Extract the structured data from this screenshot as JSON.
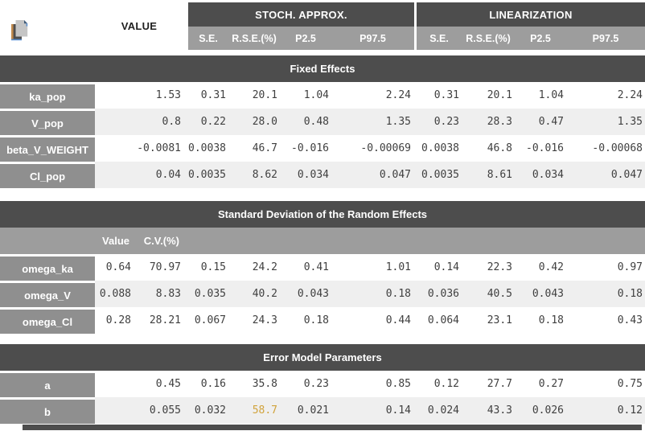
{
  "header": {
    "value_label": "VALUE",
    "groups": [
      {
        "label": "STOCH. APPROX.",
        "columns": [
          "S.E.",
          "R.S.E.(%)",
          "P2.5",
          "P97.5"
        ]
      },
      {
        "label": "LINEARIZATION",
        "columns": [
          "S.E.",
          "R.S.E.(%)",
          "P2.5",
          "P97.5"
        ]
      }
    ]
  },
  "icons": {
    "copy_icon": "copy-table-icon"
  },
  "sections": [
    {
      "title": "Fixed Effects",
      "rows": [
        {
          "label": "ka_pop",
          "value": "1.53",
          "cells": [
            "0.31",
            "20.1",
            "1.04",
            "2.24",
            "0.31",
            "20.1",
            "1.04",
            "2.24"
          ]
        },
        {
          "label": "V_pop",
          "value": "0.8",
          "cells": [
            "0.22",
            "28.0",
            "0.48",
            "1.35",
            "0.23",
            "28.3",
            "0.47",
            "1.35"
          ]
        },
        {
          "label": "beta_V_WEIGHT",
          "value": "-0.0081",
          "cells": [
            "0.0038",
            "46.7",
            "-0.016",
            "-0.00069",
            "0.0038",
            "46.8",
            "-0.016",
            "-0.00068"
          ]
        },
        {
          "label": "Cl_pop",
          "value": "0.04",
          "cells": [
            "0.0035",
            "8.62",
            "0.034",
            "0.047",
            "0.0035",
            "8.61",
            "0.034",
            "0.047"
          ]
        }
      ]
    },
    {
      "title": "Standard Deviation of the Random Effects",
      "sub_header": {
        "value_label": "Value",
        "cv_label": "C.V.(%)"
      },
      "rows": [
        {
          "label": "omega_ka",
          "value": "0.64",
          "cv": "70.97",
          "cells": [
            "0.15",
            "24.2",
            "0.41",
            "1.01",
            "0.14",
            "22.3",
            "0.42",
            "0.97"
          ]
        },
        {
          "label": "omega_V",
          "value": "0.088",
          "cv": "8.83",
          "cells": [
            "0.035",
            "40.2",
            "0.043",
            "0.18",
            "0.036",
            "40.5",
            "0.043",
            "0.18"
          ]
        },
        {
          "label": "omega_Cl",
          "value": "0.28",
          "cv": "28.21",
          "cells": [
            "0.067",
            "24.3",
            "0.18",
            "0.44",
            "0.064",
            "23.1",
            "0.18",
            "0.43"
          ]
        }
      ]
    },
    {
      "title": "Error Model Parameters",
      "rows": [
        {
          "label": "a",
          "value": "0.45",
          "cells": [
            "0.16",
            "35.8",
            "0.23",
            "0.85",
            "0.12",
            "27.7",
            "0.27",
            "0.75"
          ]
        },
        {
          "label": "b",
          "value": "0.055",
          "cells": [
            "0.032",
            "58.7",
            "0.021",
            "0.14",
            "0.024",
            "43.3",
            "0.026",
            "0.12"
          ],
          "highlight_cells": [
            1
          ]
        }
      ]
    }
  ],
  "colors": {
    "header_dark": "#4d4d4d",
    "subheader_gray": "#9d9d9d",
    "label_gray": "#8f8f8f",
    "row_alt": "#efefef",
    "highlight_value": "#d1a33c"
  }
}
